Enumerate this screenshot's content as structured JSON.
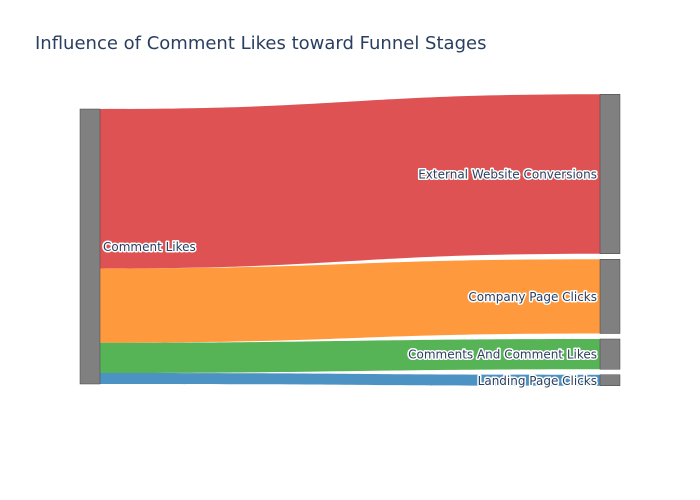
{
  "chart_data": {
    "type": "sankey",
    "title": "Influence of Comment Likes toward Funnel Stages",
    "nodes": [
      {
        "id": "comment_likes",
        "label": "Comment Likes",
        "color": "#808080",
        "column": 0
      },
      {
        "id": "external_website_conversions",
        "label": "External Website Conversions",
        "color": "#808080",
        "column": 1
      },
      {
        "id": "company_page_clicks",
        "label": "Company Page Clicks",
        "color": "#808080",
        "column": 1
      },
      {
        "id": "comments_and_comment_likes",
        "label": "Comments And Comment Likes",
        "color": "#808080",
        "column": 1
      },
      {
        "id": "landing_page_clicks",
        "label": "Landing Page Clicks",
        "color": "#808080",
        "column": 1
      }
    ],
    "links": [
      {
        "source": "comment_likes",
        "target": "external_website_conversions",
        "value": 58,
        "color": "#d62728"
      },
      {
        "source": "comment_likes",
        "target": "company_page_clicks",
        "value": 27,
        "color": "#ff7f0e"
      },
      {
        "source": "comment_likes",
        "target": "comments_and_comment_likes",
        "value": 11,
        "color": "#2ca02c"
      },
      {
        "source": "comment_likes",
        "target": "landing_page_clicks",
        "value": 4,
        "color": "#1f77b4"
      }
    ],
    "link_opacity": 0.8
  }
}
